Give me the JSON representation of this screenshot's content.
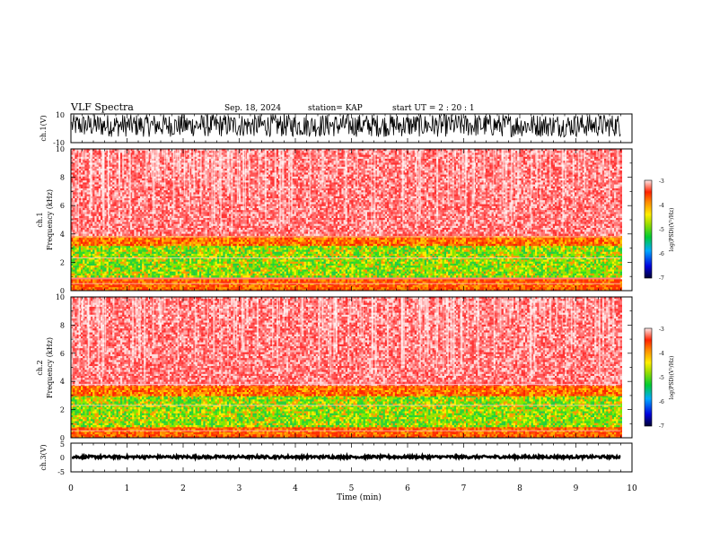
{
  "header": {
    "title": "VLF Spectra",
    "date": "Sep. 18, 2024",
    "station": "station= KAP",
    "start_ut": "start  UT  =   2  : 20 : 1"
  },
  "chart_data": [
    {
      "type": "line",
      "ylabel": "ch.1(V)",
      "ylim": [
        -10,
        10
      ],
      "y_ticklabels": [
        "10",
        "-10"
      ],
      "x_unit": "min",
      "xlim": [
        0,
        10
      ],
      "data_xmax": 9.8,
      "waveform_range": [
        -10,
        10
      ],
      "note": "dense oscillation between roughly -6 and +10 V"
    },
    {
      "type": "heatmap",
      "ylabel_top": "ch.1",
      "ylabel": "Frequency  (kHz)",
      "ylim": [
        0,
        10
      ],
      "y_ticklabels": [
        "0",
        "2",
        "4",
        "6",
        "8",
        "10"
      ],
      "xlim": [
        0,
        10
      ],
      "data_xmax": 9.8,
      "colorbar": {
        "label": "log(PSD)(V²/Hz)",
        "range": [
          -7,
          -3
        ],
        "ticklabels": [
          "-3",
          "-4",
          "-5",
          "-6",
          "-7"
        ]
      },
      "bands": [
        {
          "from": 0.0,
          "to": 0.8,
          "level": "red-orange"
        },
        {
          "from": 1.0,
          "to": 3.3,
          "level": "green-yellow"
        },
        {
          "from": 3.3,
          "to": 4.0,
          "level": "orange"
        },
        {
          "from": 4.0,
          "to": 10.0,
          "level": "light-red"
        }
      ]
    },
    {
      "type": "heatmap",
      "ylabel_top": "ch.2",
      "ylabel": "Frequency  (kHz)",
      "ylim": [
        0,
        10
      ],
      "y_ticklabels": [
        "0",
        "2",
        "4",
        "6",
        "8",
        "10"
      ],
      "xlim": [
        0,
        10
      ],
      "data_xmax": 9.8,
      "colorbar": {
        "label": "log(PSD)(V²/Hz)",
        "range": [
          -7,
          -3
        ],
        "ticklabels": [
          "-3",
          "-4",
          "-5",
          "-6",
          "-7"
        ]
      },
      "bands": [
        {
          "from": 0.0,
          "to": 0.8,
          "level": "red-orange"
        },
        {
          "from": 0.8,
          "to": 3.0,
          "level": "green-yellow"
        },
        {
          "from": 3.0,
          "to": 3.8,
          "level": "orange"
        },
        {
          "from": 3.8,
          "to": 10.0,
          "level": "light-red"
        }
      ]
    },
    {
      "type": "line",
      "ylabel": "ch.3(V)",
      "ylim": [
        -5,
        5
      ],
      "y_ticklabels": [
        "5",
        "0",
        "-5"
      ],
      "xlabel": "Time  (min)",
      "xlim": [
        0,
        10
      ],
      "x_ticklabels": [
        "0",
        "1",
        "2",
        "3",
        "4",
        "5",
        "6",
        "7",
        "8",
        "9",
        "10"
      ],
      "data_xmax": 9.8,
      "waveform_range": [
        -0.3,
        0.6
      ],
      "note": "nearly flat thick trace slightly above 0 V"
    }
  ],
  "colors": {
    "axis": "#000000",
    "spectrum_bg": "#ff6666",
    "spectrum_high": "#ffff00",
    "spectrum_green": "#33cc33",
    "waveform": "#000000"
  }
}
